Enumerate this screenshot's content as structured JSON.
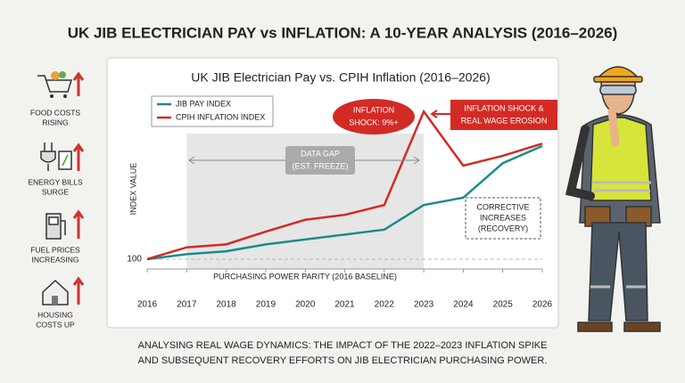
{
  "header": {
    "title": "UK JIB ELECTRICIAN PAY vs INFLATION: A 10-YEAR ANALYSIS (2016–2026)"
  },
  "sidebar": {
    "items": [
      [
        "FOOD COSTS",
        "RISING"
      ],
      [
        "ENERGY BILLS",
        "SURGE"
      ],
      [
        "FUEL PRICES",
        "INCREASING"
      ],
      [
        "HOUSING",
        "COSTS UP"
      ]
    ]
  },
  "chart_data": {
    "type": "line",
    "title": "UK JIB Electrician Pay vs. CPIH Inflation (2016–2026)",
    "y_label": "INDEX VALUE",
    "x": [
      2016,
      2017,
      2018,
      2019,
      2020,
      2021,
      2022,
      2023,
      2024,
      2025,
      2026
    ],
    "xlim": [
      2016,
      2026
    ],
    "xticks": [
      2016,
      2017,
      2018,
      2019,
      2020,
      2021,
      2022,
      2023,
      2024,
      2025,
      2026
    ],
    "ylim": [
      98,
      140
    ],
    "yticks": [
      100
    ],
    "grid": true,
    "shade_xlim": [
      2017,
      2023
    ],
    "series": [
      {
        "name": "JIB PAY INDEX",
        "color": "#1f8a8a",
        "values": [
          100,
          101,
          101.6,
          103,
          104,
          105,
          106,
          111,
          112.5,
          119.5,
          123
        ]
      },
      {
        "name": "CPIH INFLATION INDEX",
        "color": "#d42a25",
        "values": [
          100,
          102.4,
          103,
          105.6,
          108,
          109,
          111,
          130,
          119,
          121,
          123.5
        ]
      }
    ],
    "annotations": {
      "data_gap": [
        "DATA GAP",
        "(EST. FREEZE)"
      ],
      "shock": [
        "INFLATION",
        "SHOCK: 9%+"
      ],
      "erosion": [
        "INFLATION SHOCK &",
        "REAL WAGE EROSION"
      ],
      "recovery": [
        "CORRECTIVE",
        "INCREASES",
        "(RECOVERY)"
      ],
      "baseline": "PURCHASING POWER PARITY (2016 BASELINE)"
    }
  },
  "footer": {
    "caption": [
      "ANALYSING REAL WAGE DYNAMICS: THE IMPACT OF THE 2022–2023 INFLATION SPIKE",
      "AND SUBSEQUENT RECOVERY EFFORTS ON JIB ELECTRICIAN PURCHASING POWER."
    ]
  }
}
